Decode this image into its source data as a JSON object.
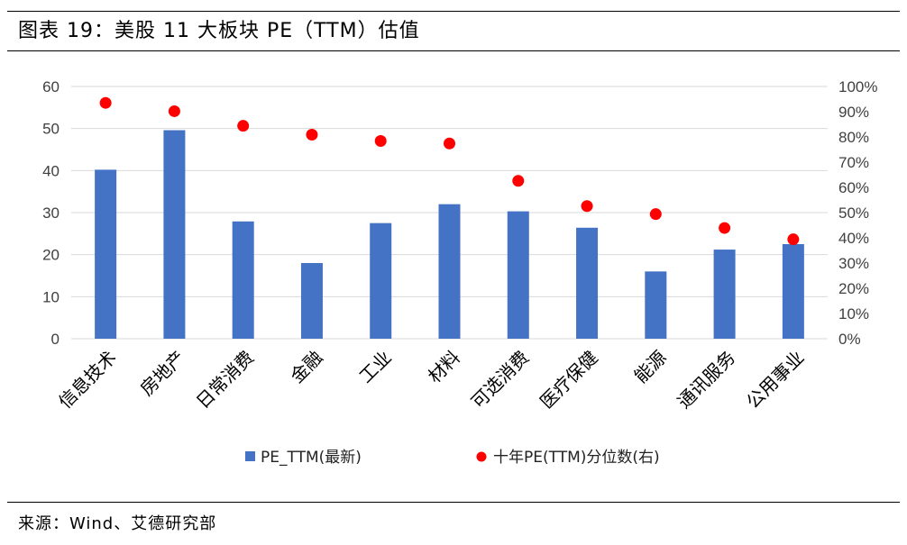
{
  "header": {
    "title": "图表 19：美股 11 大板块 PE（TTM）估值"
  },
  "footer": {
    "source": "来源：Wind、艾德研究部"
  },
  "colors": {
    "bar": "#4472C4",
    "dot": "#FF0000",
    "grid": "#D9D9D9"
  },
  "chart_data": {
    "type": "bar",
    "title": "美股 11 大板块 PE（TTM）估值",
    "categories": [
      "信息技术",
      "房地产",
      "日常消费",
      "金融",
      "工业",
      "材料",
      "可选消费",
      "医疗保健",
      "能源",
      "通讯服务",
      "公用事业"
    ],
    "series": [
      {
        "name": "PE_TTM(最新)",
        "type": "bar",
        "axis": "left",
        "values": [
          40.2,
          49.6,
          27.9,
          18.0,
          27.5,
          32.0,
          30.3,
          26.4,
          16.0,
          21.2,
          22.5
        ]
      },
      {
        "name": "十年PE(TTM)分位数(右)",
        "type": "scatter",
        "axis": "right",
        "values": [
          93.5,
          90.2,
          84.4,
          80.9,
          78.4,
          77.4,
          62.6,
          52.6,
          49.4,
          43.9,
          39.4
        ]
      }
    ],
    "ylim": [
      0,
      60
    ],
    "yticks": [
      0,
      10,
      20,
      30,
      40,
      50,
      60
    ],
    "y2lim": [
      0,
      100
    ],
    "y2ticks": [
      "0%",
      "10%",
      "20%",
      "30%",
      "40%",
      "50%",
      "60%",
      "70%",
      "80%",
      "90%",
      "100%"
    ],
    "grid": true,
    "legend": "bottom"
  }
}
